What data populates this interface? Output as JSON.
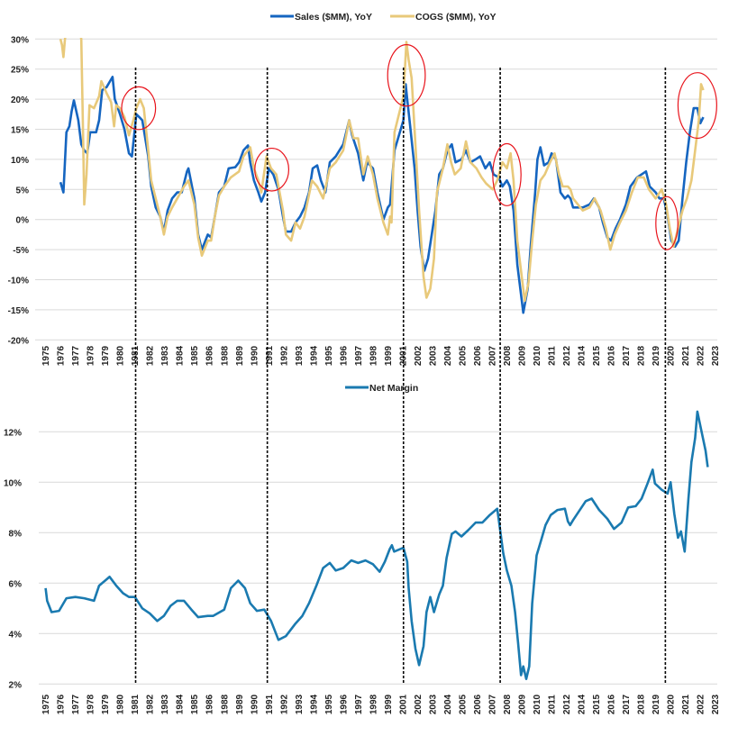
{
  "chart_data": [
    {
      "type": "line",
      "title": "",
      "xlabel": "",
      "ylabel": "",
      "ylim": [
        -20,
        30
      ],
      "yticks": [
        "30%",
        "25%",
        "20%",
        "15%",
        "10%",
        "5%",
        "0%",
        "-5%",
        "-10%",
        "-15%",
        "-20%"
      ],
      "ytick_values": [
        30,
        25,
        20,
        15,
        10,
        5,
        0,
        -5,
        -10,
        -15,
        -20
      ],
      "xticks": [
        "1975",
        "1976",
        "1977",
        "1978",
        "1979",
        "1980",
        "1981",
        "1982",
        "1983",
        "1984",
        "1985",
        "1986",
        "1988",
        "1989",
        "1990",
        "1991",
        "1992",
        "1993",
        "1994",
        "1995",
        "1996",
        "1997",
        "1998",
        "1999",
        "2001",
        "2002",
        "2003",
        "2004",
        "2005",
        "2006",
        "2007",
        "2008",
        "2009",
        "2010",
        "2011",
        "2012",
        "2014",
        "2015",
        "2016",
        "2017",
        "2018",
        "2019",
        "2020",
        "2021",
        "2022",
        "2023"
      ],
      "grid": true,
      "legend_position": "top-center",
      "recession_lines": [
        1981.05,
        1990.9,
        2001.05,
        2007.55,
        2019.65
      ],
      "highlights": [
        {
          "year": 1981.25,
          "value": 18.5,
          "year_halfwidth": 1.14,
          "value_halfheight": 3.55
        },
        {
          "year": 1991.2,
          "value": 8.3,
          "year_halfwidth": 1.14,
          "value_halfheight": 3.55
        },
        {
          "year": 2001.25,
          "value": 23.95,
          "year_halfwidth": 1.6,
          "value_halfheight": 5.1
        },
        {
          "year": 2008.0,
          "value": 7.45,
          "year_halfwidth": 0.95,
          "value_halfheight": 5.15
        },
        {
          "year": 2019.75,
          "value": -0.6,
          "year_halfwidth": 0.74,
          "value_halfheight": 4.4
        },
        {
          "year": 2021.8,
          "value": 18.95,
          "year_halfwidth": 1.4,
          "value_halfheight": 5.45
        }
      ],
      "highlight_color": "#e8141c",
      "series": [
        {
          "name": "Sales ($MM), YoY",
          "color": "#1565c0",
          "x": [
            1976.0,
            1976.2,
            1976.4,
            1976.6,
            1976.75,
            1976.9,
            1977.2,
            1977.4,
            1977.6,
            1977.8,
            1978.0,
            1978.4,
            1978.6,
            1978.8,
            1979.1,
            1979.5,
            1979.65,
            1980.0,
            1980.3,
            1980.6,
            1980.8,
            1981.1,
            1981.3,
            1981.5,
            1981.9,
            1982.1,
            1982.4,
            1982.7,
            1982.95,
            1983.2,
            1983.5,
            1983.85,
            1984.15,
            1984.5,
            1984.6,
            1985.0,
            1985.25,
            1985.5,
            1985.9,
            1986.25,
            1986.75,
            1987.3,
            1988.0,
            1988.3,
            1988.75,
            1989.0,
            1989.3,
            1989.6,
            1989.75,
            1990.0,
            1990.3,
            1990.5,
            1990.75,
            1991.0,
            1991.3,
            1991.65,
            1991.95,
            1992.15,
            1992.5,
            1992.8,
            1993.1,
            1993.4,
            1993.7,
            1993.95,
            1994.25,
            1994.5,
            1994.8,
            1995.1,
            1995.5,
            1996.0,
            1996.4,
            1996.6,
            1997.0,
            1997.35,
            1997.6,
            1998.0,
            1998.3,
            1998.7,
            1999.0,
            1999.3,
            1999.7,
            1999.9,
            2001.05,
            2001.2,
            2001.3,
            2001.5,
            2001.8,
            2002.0,
            2002.2,
            2002.45,
            2002.7,
            2002.95,
            2003.2,
            2003.45,
            2003.7,
            2004.0,
            2004.3,
            2004.55,
            2004.95,
            2005.25,
            2005.55,
            2005.9,
            2006.2,
            2006.55,
            2006.85,
            2007.1,
            2007.45,
            2007.7,
            2008.0,
            2008.2,
            2008.45,
            2008.7,
            2008.9,
            2009.1,
            2009.4,
            2009.6,
            2009.9,
            2010.05,
            2010.25,
            2010.5,
            2010.8,
            2011.0,
            2011.3,
            2011.6,
            2011.9,
            2012.2,
            2012.55,
            2012.9,
            2014.1,
            2014.55,
            2014.85,
            2015.2,
            2015.45,
            2015.75,
            2016.0,
            2016.3,
            2016.6,
            2017.0,
            2017.3,
            2017.75,
            2018.05,
            2018.35,
            2018.6,
            2019.0,
            2019.25,
            2019.55,
            2019.8,
            2020.05,
            2020.3,
            2020.55,
            2020.8,
            2021.05,
            2021.3,
            2021.55,
            2021.8,
            2022.0,
            2022.2
          ],
          "y": [
            6.2,
            4.5,
            14.5,
            15.5,
            18,
            19.8,
            16.5,
            12.5,
            11.5,
            11,
            14.5,
            14.5,
            16.5,
            21.5,
            22,
            23.7,
            20,
            17.5,
            15,
            11,
            10.5,
            17.5,
            17,
            16.5,
            10.5,
            5.5,
            2,
            0.5,
            -2,
            1.5,
            3.5,
            4.5,
            4.5,
            8,
            8.5,
            3.5,
            -2.5,
            -5,
            -2.5,
            -3,
            0.5,
            4.5,
            5.5,
            8.5,
            8.7,
            9.5,
            11.5,
            12.3,
            9.5,
            6.5,
            4.5,
            3,
            4.5,
            8.5,
            7.5,
            5,
            0.5,
            -2,
            -2,
            -0.5,
            0.5,
            2,
            4.5,
            8.5,
            9,
            6.5,
            4.5,
            9.5,
            10.5,
            12.5,
            16.5,
            14,
            11,
            6.5,
            9.5,
            8.5,
            4.5,
            0,
            2,
            2.5,
            8.5,
            11.5,
            16.5,
            22.5,
            20,
            15.5,
            8.5,
            1.5,
            -4.5,
            -8.5,
            -6.5,
            -2.5,
            1.5,
            7.5,
            8.5,
            11.5,
            12.5,
            9.5,
            10,
            11.5,
            9.5,
            10,
            10.5,
            8.5,
            9.5,
            7.5,
            7,
            5.5,
            6.5,
            5.5,
            1.5,
            -7.5,
            -11.5,
            -15.5,
            -11.5,
            -4.5,
            4.5,
            10,
            12,
            9,
            9.5,
            11,
            10,
            4.5,
            3.5,
            4,
            3.5,
            2,
            2,
            2.5,
            3.5,
            2,
            -0.5,
            -3,
            -3.5,
            -1.5,
            0,
            2.5,
            5.5,
            7,
            7.5,
            8,
            5.5,
            4.5,
            3.5,
            3.5,
            0.5,
            -3.5,
            -4.5,
            -3.5,
            3.5,
            9.5,
            14.5,
            18.5,
            18.5,
            16,
            17
          ]
        },
        {
          "name": "COGS ($MM), YoY",
          "color": "#e8c97a",
          "x": [
            1976.0,
            1976.1,
            1976.2,
            1976.3,
            1976.6,
            1977.0,
            1977.4,
            1977.5,
            1977.6,
            1977.75,
            1977.95,
            1978.25,
            1978.6,
            1978.75,
            1979.1,
            1979.4,
            1979.6,
            1979.75,
            1980.0,
            1980.3,
            1980.6,
            1980.9,
            1981.1,
            1981.35,
            1981.6,
            1981.9,
            1982.1,
            1982.4,
            1982.7,
            1982.95,
            1983.2,
            1983.5,
            1983.85,
            1984.3,
            1984.6,
            1985.0,
            1985.25,
            1985.5,
            1985.9,
            1986.25,
            1986.75,
            1987.3,
            1988.0,
            1988.45,
            1989.0,
            1989.3,
            1989.75,
            1990.0,
            1990.3,
            1990.5,
            1990.85,
            1991.15,
            1991.5,
            1991.95,
            1992.15,
            1992.5,
            1992.8,
            1993.1,
            1993.4,
            1993.9,
            1994.25,
            1994.65,
            1995.1,
            1995.5,
            1996.0,
            1996.4,
            1996.7,
            1997.0,
            1997.35,
            1997.65,
            1998.0,
            1998.3,
            1998.7,
            1999.0,
            1999.3,
            1999.5,
            1999.7,
            1999.9,
            2001.05,
            2001.25,
            2001.4,
            2001.6,
            2001.85,
            2002.1,
            2002.4,
            2002.6,
            2002.85,
            2003.1,
            2003.3,
            2003.7,
            2004.0,
            2004.25,
            2004.5,
            2004.9,
            2005.25,
            2005.55,
            2005.95,
            2006.3,
            2006.6,
            2007.05,
            2007.35,
            2007.7,
            2008.0,
            2008.25,
            2008.45,
            2008.7,
            2008.95,
            2009.2,
            2009.45,
            2009.7,
            2009.95,
            2010.25,
            2010.55,
            2010.9,
            2011.2,
            2011.5,
            2011.75,
            2012.2,
            2012.55,
            2012.9,
            2014.1,
            2014.55,
            2014.9,
            2015.3,
            2015.65,
            2015.95,
            2016.25,
            2016.6,
            2017.0,
            2017.4,
            2017.8,
            2018.2,
            2018.55,
            2019.0,
            2019.4,
            2019.7,
            2019.95,
            2020.2,
            2020.5,
            2020.8,
            2021.1,
            2021.4,
            2021.6,
            2021.9,
            2022.05,
            2022.2
          ],
          "y": [
            30,
            29,
            27,
            30,
            35,
            35,
            30,
            16.5,
            2.5,
            7.5,
            19,
            18.5,
            20.5,
            23,
            21,
            19.5,
            15.5,
            19,
            18.5,
            17,
            14,
            16.5,
            18.5,
            20,
            18.5,
            11.5,
            6.5,
            3.5,
            0.5,
            -2.5,
            0.5,
            2,
            3.5,
            5.5,
            6.5,
            2.5,
            -3,
            -6,
            -3.5,
            -3.5,
            0.5,
            4,
            5.5,
            7,
            8,
            10.5,
            12,
            8.5,
            6.5,
            4.5,
            10.5,
            8.5,
            7.5,
            1.5,
            -2.5,
            -3.5,
            -0.5,
            -1.5,
            0.5,
            6.5,
            5.5,
            3.5,
            8.5,
            9.5,
            11.5,
            16.5,
            13.5,
            13.5,
            7.5,
            10.5,
            7.5,
            3.5,
            -0.5,
            -2.5,
            0.5,
            -0.5,
            7.5,
            14.5,
            20.5,
            29.5,
            26.5,
            23.5,
            12.5,
            1.5,
            -9.5,
            -13,
            -11.5,
            -6.5,
            4.5,
            8.5,
            12.5,
            9.5,
            7.5,
            8.5,
            13,
            9.5,
            8.5,
            7,
            6,
            5,
            6.5,
            9.5,
            8.5,
            11,
            6.5,
            -3.5,
            -8.5,
            -13.5,
            -10.5,
            -3.5,
            2.5,
            6.5,
            7.5,
            9.5,
            11,
            7.5,
            5.5,
            5.5,
            5,
            3.5,
            1.5,
            2,
            3.5,
            1.5,
            -1.5,
            -5,
            -2.5,
            -0.5,
            1.5,
            4.5,
            7,
            7,
            5,
            3.5,
            5,
            2.5,
            -1.5,
            -4.5,
            -1.5,
            1.5,
            3.5,
            6.5,
            10.5,
            16.5,
            22.5,
            21.5
          ]
        }
      ]
    },
    {
      "type": "line",
      "title": "",
      "xlabel": "",
      "ylabel": "",
      "ylim": [
        2,
        13
      ],
      "yticks": [
        "12%",
        "10%",
        "8%",
        "6%",
        "4%",
        "2%"
      ],
      "ytick_values": [
        12,
        10,
        8,
        6,
        4,
        2
      ],
      "xticks": [
        "1975",
        "1976",
        "1977",
        "1978",
        "1979",
        "1980",
        "1981",
        "1982",
        "1983",
        "1984",
        "1985",
        "1986",
        "1988",
        "1989",
        "1990",
        "1991",
        "1992",
        "1993",
        "1994",
        "1995",
        "1996",
        "1997",
        "1998",
        "1999",
        "2001",
        "2002",
        "2003",
        "2004",
        "2005",
        "2006",
        "2007",
        "2008",
        "2009",
        "2010",
        "2011",
        "2012",
        "2014",
        "2015",
        "2016",
        "2017",
        "2018",
        "2019",
        "2020",
        "2021",
        "2022",
        "2023"
      ],
      "grid": true,
      "legend_position": "top-center",
      "recession_lines": [
        1981.05,
        1990.9,
        2001.05,
        2007.55,
        2019.65
      ],
      "series": [
        {
          "name": "Net Margin",
          "color": "#1a7ab0",
          "x": [
            1975.0,
            1975.1,
            1975.4,
            1975.9,
            1976.4,
            1977.0,
            1977.6,
            1978.25,
            1978.6,
            1979.1,
            1979.3,
            1979.75,
            1980.2,
            1980.6,
            1981.0,
            1981.5,
            1982.0,
            1982.5,
            1982.95,
            1983.4,
            1983.85,
            1984.3,
            1984.8,
            1985.25,
            1985.9,
            1986.5,
            1988.0,
            1988.45,
            1988.95,
            1989.4,
            1989.75,
            1990.2,
            1990.7,
            1991.15,
            1991.65,
            1992.15,
            1992.8,
            1993.25,
            1993.7,
            1994.2,
            1994.65,
            1995.1,
            1995.5,
            1996.0,
            1996.55,
            1997.0,
            1997.5,
            1998.0,
            1998.45,
            1998.8,
            1999.25,
            1999.55,
            1999.85,
            2001.05,
            2001.3,
            2001.4,
            2001.6,
            2001.85,
            2002.1,
            2002.4,
            2002.6,
            2002.85,
            2003.1,
            2003.45,
            2003.7,
            2003.95,
            2004.3,
            2004.55,
            2004.95,
            2005.4,
            2005.9,
            2006.35,
            2006.85,
            2007.35,
            2007.5,
            2007.75,
            2008.0,
            2008.3,
            2008.55,
            2008.75,
            2008.95,
            2009.1,
            2009.3,
            2009.5,
            2009.7,
            2010.0,
            2010.3,
            2010.6,
            2010.95,
            2011.4,
            2011.9,
            2012.2,
            2012.5,
            2012.9,
            2014.3,
            2014.7,
            2015.2,
            2015.75,
            2016.2,
            2016.7,
            2017.15,
            2017.65,
            2018.05,
            2018.45,
            2018.8,
            2018.95,
            2019.4,
            2019.8,
            2020.0,
            2020.25,
            2020.5,
            2020.7,
            2020.95,
            2021.2,
            2021.4,
            2021.65,
            2021.8,
            2022.05,
            2022.35,
            2022.5
          ],
          "y": [
            5.8,
            5.3,
            4.85,
            4.9,
            5.4,
            5.45,
            5.4,
            5.3,
            5.9,
            6.15,
            6.25,
            5.9,
            5.6,
            5.45,
            5.45,
            5.0,
            4.8,
            4.5,
            4.7,
            5.1,
            5.3,
            5.3,
            4.95,
            4.65,
            4.7,
            4.7,
            4.95,
            5.8,
            6.1,
            5.8,
            5.2,
            4.9,
            4.95,
            4.5,
            3.75,
            3.9,
            4.4,
            4.7,
            5.2,
            5.9,
            6.6,
            6.8,
            6.5,
            6.6,
            6.9,
            6.8,
            6.9,
            6.75,
            6.45,
            6.85,
            7.35,
            7.5,
            7.25,
            7.4,
            6.85,
            5.8,
            4.5,
            3.4,
            2.75,
            3.5,
            4.85,
            5.45,
            4.85,
            5.55,
            5.9,
            7.0,
            7.95,
            8.05,
            7.85,
            8.1,
            8.4,
            8.4,
            8.7,
            8.95,
            8.3,
            7.2,
            6.5,
            5.9,
            4.85,
            3.65,
            2.35,
            2.7,
            2.2,
            2.7,
            5.2,
            7.1,
            7.7,
            8.3,
            8.7,
            8.9,
            8.95,
            8.45,
            8.3,
            8.5,
            9.25,
            9.35,
            8.9,
            8.55,
            8.15,
            8.4,
            9.0,
            9.05,
            9.35,
            9.95,
            10.5,
            9.95,
            9.7,
            9.55,
            10.0,
            8.75,
            7.8,
            8.05,
            7.25,
            9.35,
            10.8,
            11.75,
            12.8,
            12.1,
            11.25,
            10.6
          ]
        }
      ]
    }
  ]
}
